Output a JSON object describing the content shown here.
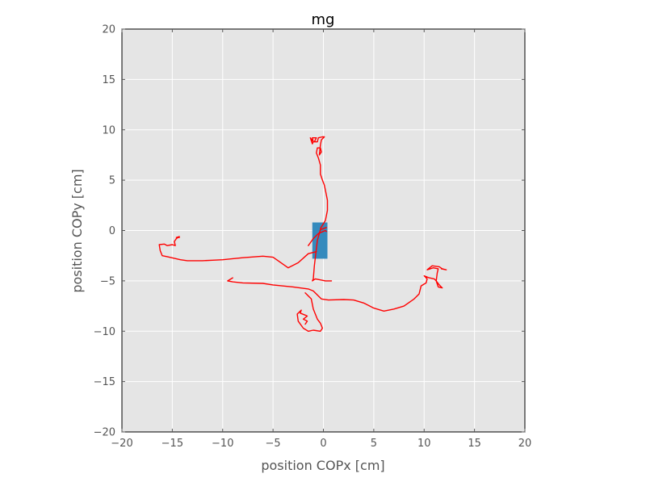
{
  "chart_data": {
    "type": "line",
    "title": "mg",
    "xlabel": "position COPx [cm]",
    "ylabel": "position COPy [cm]",
    "xlim": [
      -20,
      20
    ],
    "ylim": [
      -20,
      20
    ],
    "xticks": [
      -20,
      -15,
      -10,
      -5,
      0,
      5,
      10,
      15,
      20
    ],
    "yticks": [
      -20,
      -15,
      -10,
      -5,
      0,
      5,
      10,
      15,
      20
    ],
    "grid": true,
    "background_color": "#e5e5e5",
    "series": [
      {
        "color": "#ff0000",
        "segments": [
          [
            [
              -1.5,
              -1.5
            ],
            [
              -1.0,
              -0.8
            ],
            [
              -0.5,
              -0.3
            ],
            [
              0.2,
              0
            ],
            [
              0.3,
              -0.1
            ]
          ],
          [
            [
              0.3,
              0.3
            ],
            [
              -0.3,
              0.1
            ],
            [
              -0.6,
              -1.0
            ],
            [
              -0.9,
              -3.5
            ],
            [
              -1.0,
              -4.8
            ],
            [
              -1.1,
              -5.0
            ],
            [
              -0.8,
              -4.8
            ],
            [
              0.2,
              -5.0
            ],
            [
              0.8,
              -5.0
            ]
          ],
          [
            [
              -0.3,
              0.2
            ],
            [
              0.2,
              1.0
            ],
            [
              0.4,
              2.0
            ],
            [
              0.4,
              3.0
            ],
            [
              0.2,
              4.0
            ],
            [
              0.1,
              4.5
            ],
            [
              -0.1,
              5.0
            ],
            [
              -0.3,
              5.6
            ],
            [
              -0.3,
              6.5
            ],
            [
              -0.5,
              7.2
            ],
            [
              -0.7,
              7.7
            ],
            [
              -0.6,
              8.2
            ],
            [
              -0.3,
              8.2
            ],
            [
              -0.2,
              7.8
            ],
            [
              -0.4,
              7.5
            ],
            [
              -0.3,
              8.5
            ],
            [
              -0.2,
              9.0
            ],
            [
              0.1,
              9.3
            ],
            [
              -0.1,
              9.3
            ],
            [
              -0.5,
              9.2
            ],
            [
              -0.6,
              8.8
            ],
            [
              -0.9,
              8.8
            ],
            [
              -0.7,
              9.2
            ],
            [
              -1.1,
              9.2
            ],
            [
              -1.0,
              8.8
            ],
            [
              -1.3,
              9.2
            ],
            [
              -1.1,
              8.6
            ],
            [
              -1.0,
              8.8
            ]
          ],
          [
            [
              -0.7,
              -2.1
            ],
            [
              -1.5,
              -2.3
            ],
            [
              -2.5,
              -3.2
            ],
            [
              -3.5,
              -3.7
            ],
            [
              -4.5,
              -3.0
            ],
            [
              -5.0,
              -2.65
            ],
            [
              -6.0,
              -2.55
            ],
            [
              -8.0,
              -2.7
            ],
            [
              -10.0,
              -2.9
            ],
            [
              -11.0,
              -2.95
            ],
            [
              -12.0,
              -3.0
            ],
            [
              -13.5,
              -3.0
            ],
            [
              -14.2,
              -2.9
            ],
            [
              -15.5,
              -2.6
            ],
            [
              -16.0,
              -2.5
            ],
            [
              -16.2,
              -2.0
            ],
            [
              -16.3,
              -1.4
            ],
            [
              -15.8,
              -1.35
            ],
            [
              -15.5,
              -1.5
            ],
            [
              -15.0,
              -1.4
            ],
            [
              -14.7,
              -1.5
            ],
            [
              -14.8,
              -1.1
            ],
            [
              -14.6,
              -0.8
            ],
            [
              -14.3,
              -0.6
            ],
            [
              -14.6,
              -0.7
            ],
            [
              -14.3,
              -0.7
            ]
          ],
          [
            [
              -9.5,
              -5.0
            ],
            [
              -9.0,
              -5.1
            ],
            [
              -8.0,
              -5.2
            ],
            [
              -6.0,
              -5.25
            ],
            [
              -5.0,
              -5.4
            ],
            [
              -3.0,
              -5.6
            ],
            [
              -1.5,
              -5.8
            ],
            [
              -1.0,
              -6.0
            ],
            [
              -0.5,
              -6.5
            ],
            [
              -0.2,
              -6.8
            ],
            [
              0.5,
              -6.9
            ],
            [
              2.0,
              -6.85
            ],
            [
              3.0,
              -6.9
            ],
            [
              4.0,
              -7.2
            ],
            [
              5.0,
              -7.7
            ],
            [
              6.0,
              -8.0
            ],
            [
              7.0,
              -7.8
            ],
            [
              8.0,
              -7.5
            ],
            [
              9.0,
              -6.8
            ],
            [
              9.5,
              -6.3
            ],
            [
              9.7,
              -5.5
            ],
            [
              10.2,
              -5.2
            ],
            [
              10.3,
              -4.8
            ],
            [
              10.0,
              -4.5
            ],
            [
              10.5,
              -4.7
            ],
            [
              11.0,
              -4.8
            ],
            [
              11.2,
              -5.0
            ],
            [
              11.5,
              -5.4
            ],
            [
              11.8,
              -5.7
            ],
            [
              11.4,
              -5.6
            ],
            [
              11.2,
              -5.0
            ],
            [
              11.3,
              -4.2
            ],
            [
              11.4,
              -3.8
            ],
            [
              10.9,
              -3.7
            ],
            [
              10.3,
              -3.9
            ],
            [
              10.8,
              -3.5
            ],
            [
              11.5,
              -3.6
            ],
            [
              11.8,
              -3.8
            ],
            [
              12.2,
              -3.9
            ],
            [
              11.7,
              -3.8
            ]
          ],
          [
            [
              -9.0,
              -4.7
            ],
            [
              -9.5,
              -5.0
            ]
          ],
          [
            [
              -1.8,
              -6.2
            ],
            [
              -1.2,
              -6.8
            ],
            [
              -1.0,
              -7.8
            ],
            [
              -0.6,
              -8.8
            ],
            [
              -0.3,
              -9.2
            ],
            [
              -0.1,
              -9.7
            ],
            [
              -0.3,
              -10.0
            ],
            [
              -1.0,
              -9.9
            ],
            [
              -1.5,
              -10.0
            ],
            [
              -2.0,
              -9.7
            ],
            [
              -2.5,
              -9.0
            ],
            [
              -2.6,
              -8.3
            ],
            [
              -2.2,
              -7.9
            ],
            [
              -2.3,
              -8.2
            ],
            [
              -1.8,
              -8.4
            ],
            [
              -1.6,
              -8.5
            ],
            [
              -2.0,
              -8.8
            ],
            [
              -1.6,
              -9.0
            ],
            [
              -1.8,
              -9.3
            ]
          ]
        ]
      }
    ],
    "rect": {
      "x0": -1.1,
      "x1": 0.4,
      "y0": -2.8,
      "y1": 0.8,
      "color": "#348abd"
    }
  }
}
